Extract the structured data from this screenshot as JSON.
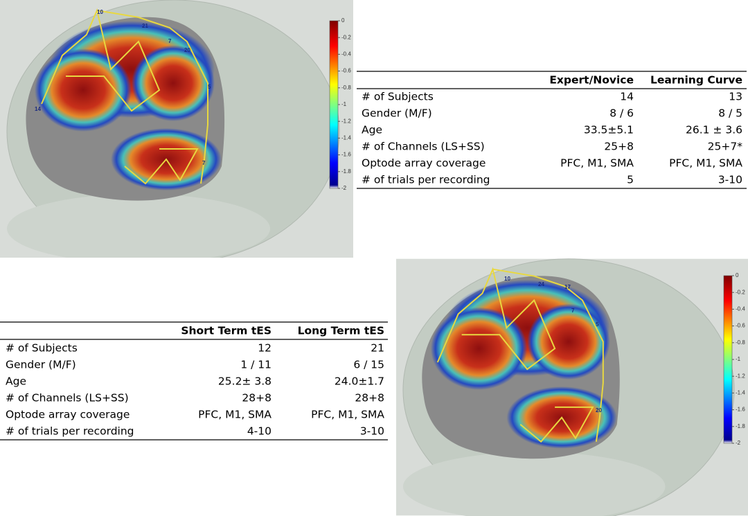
{
  "panels": [
    {
      "colorbar": {
        "ylim": [
          -2,
          0
        ],
        "yticks": [
          0,
          -0.2,
          -0.4,
          -0.6,
          -0.8,
          -1,
          -1.2,
          -1.4,
          -1.6,
          -1.8,
          -2
        ]
      },
      "optodes": [
        "10",
        "21",
        "7",
        "20",
        "5",
        "14",
        "7"
      ]
    },
    {
      "colorbar": {
        "ylim": [
          -2,
          0
        ],
        "yticks": [
          0,
          -0.2,
          -0.4,
          -0.6,
          -0.8,
          -1,
          -1.2,
          -1.4,
          -1.6,
          -1.8,
          -2
        ]
      },
      "optodes": [
        "10",
        "24",
        "17",
        "7",
        "5",
        "20"
      ]
    }
  ],
  "tables": [
    {
      "columns": [
        "Expert/Novice",
        "Learning Curve"
      ],
      "rows": [
        [
          "# of Subjects",
          "14",
          "13"
        ],
        [
          "Gender (M/F)",
          "8 / 6",
          "8 / 5"
        ],
        [
          "Age",
          "33.5±5.1",
          "26.1 ± 3.6"
        ],
        [
          "# of Channels (LS+SS)",
          "25+8",
          "25+7*"
        ],
        [
          "Optode array coverage",
          "PFC, M1, SMA",
          "PFC, M1, SMA"
        ],
        [
          "# of trials per recording",
          "5",
          "3-10"
        ]
      ]
    },
    {
      "columns": [
        "Short Term tES",
        "Long Term tES"
      ],
      "rows": [
        [
          "# of Subjects",
          "12",
          "21"
        ],
        [
          "Gender (M/F)",
          "1 / 11",
          "6 / 15"
        ],
        [
          "Age",
          "25.2± 3.8",
          "24.0±1.7"
        ],
        [
          "# of Channels (LS+SS)",
          "28+8",
          "28+8"
        ],
        [
          "Optode array coverage",
          "PFC, M1, SMA",
          "PFC, M1, SMA"
        ],
        [
          "# of trials per recording",
          "4-10",
          "3-10"
        ]
      ]
    }
  ]
}
